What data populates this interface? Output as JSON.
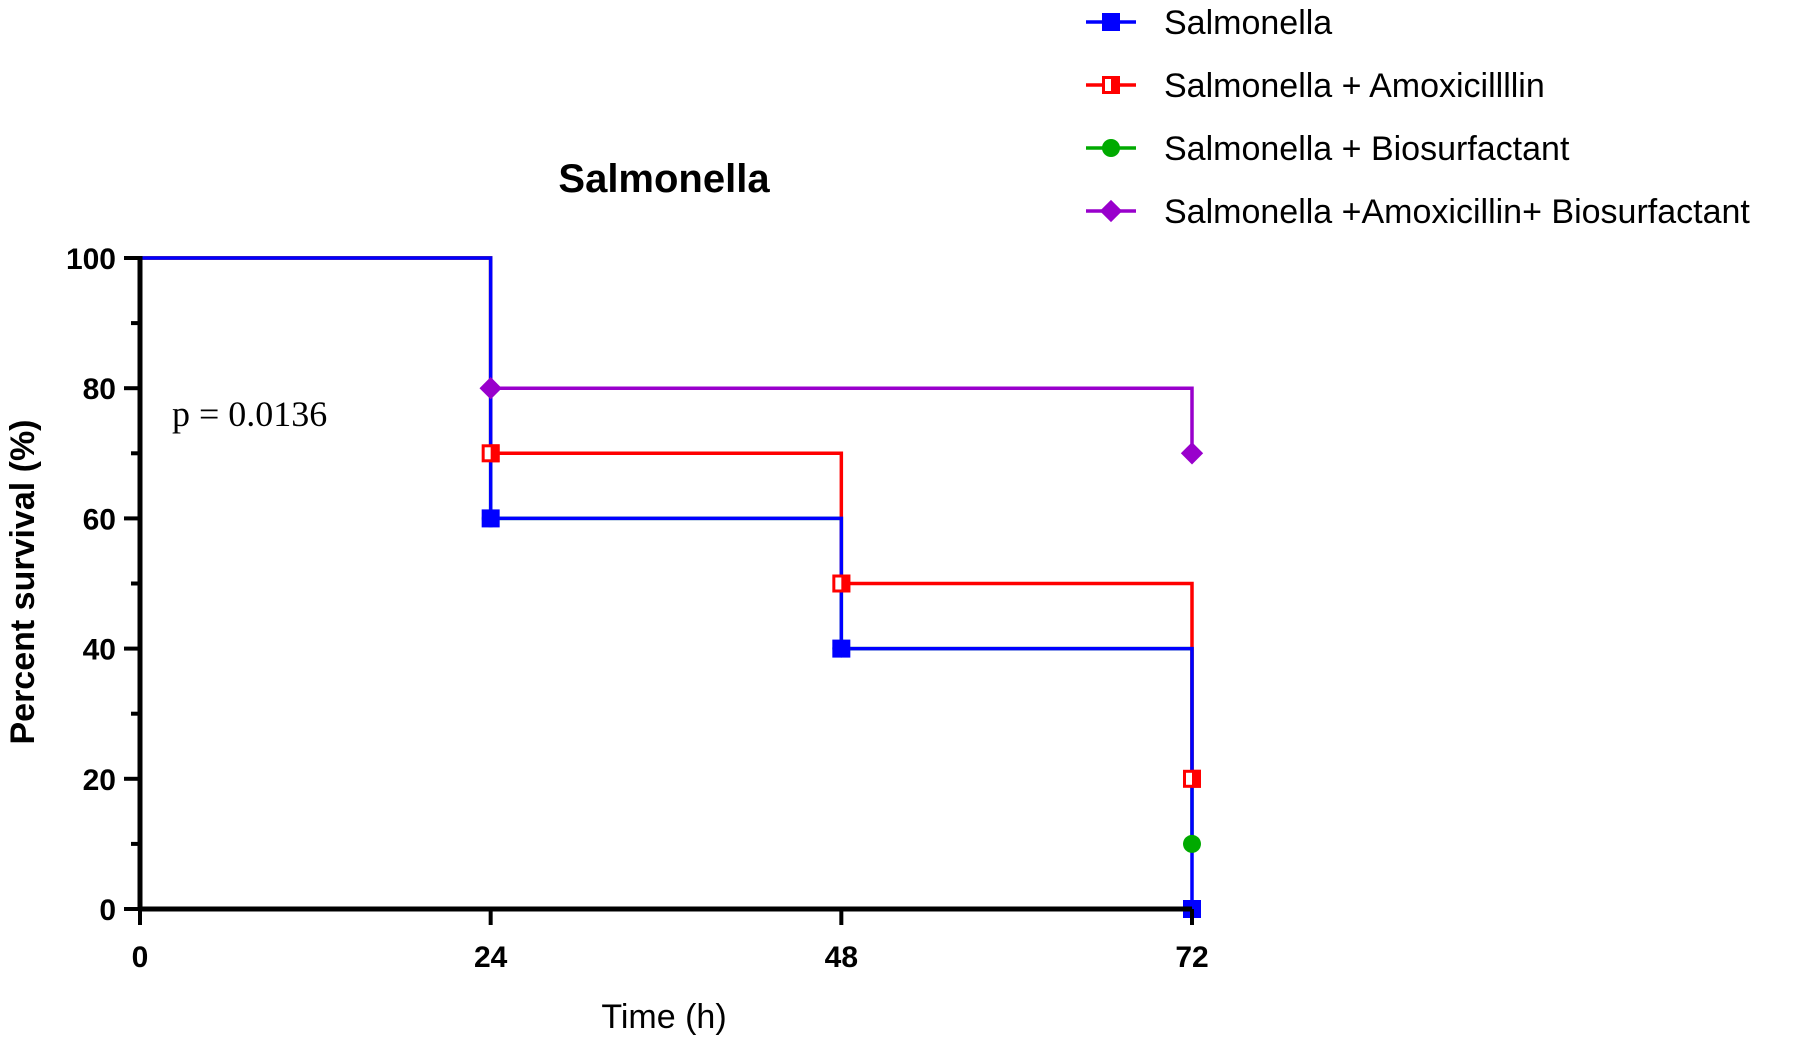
{
  "chart_data": {
    "type": "line",
    "title": "Salmonella",
    "xlabel": "Time (h)",
    "ylabel": "Percent survival (%)",
    "xlim": [
      0,
      72
    ],
    "ylim": [
      0,
      100
    ],
    "x_ticks": [
      0,
      24,
      48,
      72
    ],
    "y_ticks": [
      0,
      20,
      40,
      60,
      80,
      100
    ],
    "grid": false,
    "legend_position": "top-right",
    "annotation": "p = 0.0136",
    "series": [
      {
        "name": "Salmonella",
        "color": "#0000FF",
        "marker": "square",
        "x": [
          0,
          24,
          48,
          72
        ],
        "y": [
          100,
          60,
          40,
          0
        ]
      },
      {
        "name": "Salmonella + Amoxicillllin",
        "color": "#FF0000",
        "marker": "square-half",
        "x": [
          0,
          24,
          48,
          72
        ],
        "y": [
          100,
          70,
          50,
          20
        ]
      },
      {
        "name": "Salmonella + Biosurfactant",
        "color": "#00AA00",
        "marker": "circle",
        "x": [
          0,
          24,
          48,
          72
        ],
        "y": [
          100,
          60,
          40,
          10
        ]
      },
      {
        "name": "Salmonella +Amoxicillin+ Biosurfactant",
        "color": "#9900CC",
        "marker": "diamond",
        "x": [
          0,
          24,
          72
        ],
        "y": [
          100,
          80,
          70
        ]
      }
    ]
  }
}
